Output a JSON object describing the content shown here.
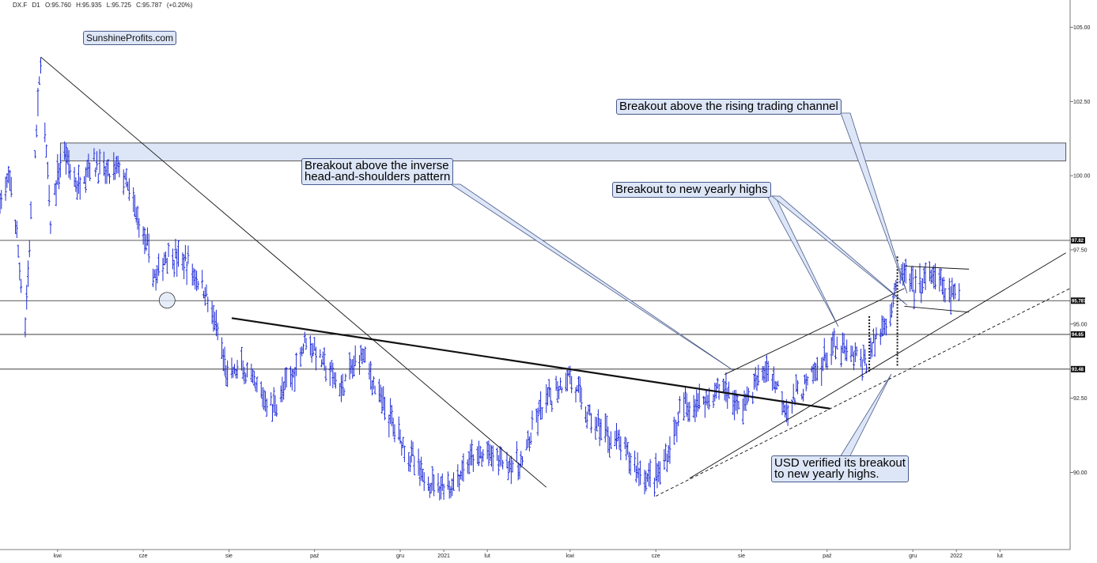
{
  "header": {
    "symbol": "DX.F",
    "timeframe": "D1",
    "open": "O:95.760",
    "high": "H:95.935",
    "low": "L:95.725",
    "close": "C:95.787",
    "change": "(+0.20%)"
  },
  "brand": "SunshineProfits.com",
  "annotations": [
    {
      "id": "a1",
      "lines": [
        "Breakout above the rising trading channel"
      ]
    },
    {
      "id": "a2",
      "lines": [
        "Breakout above the inverse",
        "head-and-shoulders pattern"
      ]
    },
    {
      "id": "a3",
      "lines": [
        "Breakout to new yearly highs"
      ]
    },
    {
      "id": "a4",
      "lines": [
        "USD verified its breakout",
        "to new yearly highs."
      ]
    }
  ],
  "colors": {
    "bars": "#1f2bd6",
    "resistance_zone_fill": "#dde6f7",
    "callout_fill": "#dde6f7",
    "callout_border": "#4a5b8a",
    "price_tag": "#111111"
  },
  "chart_data": {
    "type": "line",
    "description_of_marks": "daily OHLC bars",
    "y_axis": {
      "min": 87.4,
      "max": 105.6,
      "ticks": [
        {
          "value": 90.0,
          "label": "90.00"
        },
        {
          "value": 92.5,
          "label": "92.50"
        },
        {
          "value": 95.0,
          "label": "95.00"
        },
        {
          "value": 97.5,
          "label": "97.50"
        },
        {
          "value": 100.0,
          "label": "100.00"
        },
        {
          "value": 102.5,
          "label": "102.50"
        },
        {
          "value": 105.0,
          "label": "105.00"
        }
      ],
      "price_tags": [
        {
          "value": 97.82,
          "label": "97.82"
        },
        {
          "value": 95.787,
          "label": "95.787"
        },
        {
          "value": 94.65,
          "label": "94.65"
        },
        {
          "value": 93.48,
          "label": "93.48"
        }
      ]
    },
    "x_axis": {
      "start": "2020-02-20",
      "end": "2022-03-23",
      "ticks": [
        {
          "date": "2020-04-01",
          "label": "kwi"
        },
        {
          "date": "2020-06-01",
          "label": "cze"
        },
        {
          "date": "2020-08-01",
          "label": "sie"
        },
        {
          "date": "2020-10-01",
          "label": "paź"
        },
        {
          "date": "2020-12-01",
          "label": "gru"
        },
        {
          "date": "2021-01-01",
          "label": "2021"
        },
        {
          "date": "2021-02-01",
          "label": "lut"
        },
        {
          "date": "2021-04-01",
          "label": "kwi"
        },
        {
          "date": "2021-06-01",
          "label": "cze"
        },
        {
          "date": "2021-08-01",
          "label": "sie"
        },
        {
          "date": "2021-10-01",
          "label": "paź"
        },
        {
          "date": "2021-12-01",
          "label": "gru"
        },
        {
          "date": "2022-01-01",
          "label": "2022"
        },
        {
          "date": "2022-02-01",
          "label": "lut"
        }
      ]
    },
    "series": [
      {
        "price_path": [
          [
            "2020-02-20",
            99.2
          ],
          [
            "2020-02-28",
            99.8
          ],
          [
            "2020-03-09",
            95.0
          ],
          [
            "2020-03-13",
            98.5
          ],
          [
            "2020-03-19",
            103.0
          ],
          [
            "2020-03-20",
            103.9
          ],
          [
            "2020-03-27",
            98.3
          ],
          [
            "2020-04-01",
            100.0
          ],
          [
            "2020-04-06",
            100.8
          ],
          [
            "2020-04-15",
            99.6
          ],
          [
            "2020-04-24",
            100.5
          ],
          [
            "2020-05-07",
            100.0
          ],
          [
            "2020-05-15",
            100.3
          ],
          [
            "2020-05-22",
            99.4
          ],
          [
            "2020-06-01",
            98.0
          ],
          [
            "2020-06-10",
            96.5
          ],
          [
            "2020-06-18",
            97.4
          ],
          [
            "2020-06-25",
            97.2
          ],
          [
            "2020-07-03",
            97.0
          ],
          [
            "2020-07-15",
            96.1
          ],
          [
            "2020-07-22",
            95.0
          ],
          [
            "2020-07-31",
            93.2
          ],
          [
            "2020-08-10",
            93.5
          ],
          [
            "2020-08-20",
            92.8
          ],
          [
            "2020-09-01",
            92.2
          ],
          [
            "2020-09-15",
            93.2
          ],
          [
            "2020-09-25",
            94.6
          ],
          [
            "2020-10-05",
            93.8
          ],
          [
            "2020-10-20",
            92.8
          ],
          [
            "2020-11-04",
            94.1
          ],
          [
            "2020-11-15",
            92.6
          ],
          [
            "2020-12-01",
            91.2
          ],
          [
            "2020-12-17",
            89.8
          ],
          [
            "2021-01-06",
            89.5
          ],
          [
            "2021-01-20",
            90.4
          ],
          [
            "2021-02-01",
            90.6
          ],
          [
            "2021-02-25",
            90.2
          ],
          [
            "2021-03-10",
            92.0
          ],
          [
            "2021-03-31",
            93.3
          ],
          [
            "2021-04-15",
            91.8
          ],
          [
            "2021-05-05",
            91.0
          ],
          [
            "2021-05-25",
            89.8
          ],
          [
            "2021-06-05",
            90.0
          ],
          [
            "2021-06-20",
            92.2
          ],
          [
            "2021-07-07",
            92.5
          ],
          [
            "2021-07-20",
            92.9
          ],
          [
            "2021-07-31",
            92.1
          ],
          [
            "2021-08-10",
            92.9
          ],
          [
            "2021-08-20",
            93.5
          ],
          [
            "2021-09-03",
            92.2
          ],
          [
            "2021-09-20",
            93.2
          ],
          [
            "2021-10-05",
            94.2
          ],
          [
            "2021-10-15",
            94.0
          ],
          [
            "2021-10-28",
            93.7
          ],
          [
            "2021-11-05",
            94.5
          ],
          [
            "2021-11-15",
            95.5
          ],
          [
            "2021-11-24",
            96.8
          ],
          [
            "2021-12-01",
            96.2
          ],
          [
            "2021-12-15",
            96.6
          ],
          [
            "2021-12-27",
            96.0
          ],
          [
            "2022-01-03",
            95.8
          ]
        ]
      }
    ],
    "horizontal_levels": [
      97.82,
      95.787,
      94.65,
      93.48
    ],
    "resistance_zone": {
      "from": "2020-04-03",
      "to": "2022-03-20",
      "low": 100.5,
      "high": 101.1
    },
    "trendlines": [
      {
        "kind": "solid-thin",
        "from": [
          "2020-03-20",
          104.0
        ],
        "to": [
          "2021-03-15",
          89.5
        ]
      },
      {
        "kind": "solid-thick",
        "from": [
          "2020-08-03",
          95.2
        ],
        "to": [
          "2021-10-03",
          92.15
        ]
      },
      {
        "kind": "solid-thin",
        "from": [
          "2021-06-25",
          89.8
        ],
        "to": [
          "2022-03-20",
          97.4
        ]
      },
      {
        "kind": "dashed",
        "from": [
          "2021-06-01",
          89.2
        ],
        "to": [
          "2022-03-23",
          96.2
        ]
      },
      {
        "kind": "solid-thin",
        "from": [
          "2021-07-20",
          93.3
        ],
        "to": [
          "2021-11-25",
          96.2
        ]
      },
      {
        "kind": "solid-thin",
        "from": [
          "2021-11-25",
          96.95
        ],
        "to": [
          "2022-01-10",
          96.85
        ]
      },
      {
        "kind": "solid-thin",
        "from": [
          "2021-11-25",
          95.6
        ],
        "to": [
          "2022-01-10",
          95.4
        ]
      },
      {
        "kind": "dotted-thick",
        "from": [
          "2021-11-20",
          93.6
        ],
        "to": [
          "2021-11-20",
          97.3
        ]
      },
      {
        "kind": "dotted-thick",
        "from": [
          "2021-10-31",
          93.4
        ],
        "to": [
          "2021-10-31",
          95.3
        ]
      }
    ],
    "highlight_circle": {
      "date": "2020-06-18",
      "value": 95.8
    }
  }
}
